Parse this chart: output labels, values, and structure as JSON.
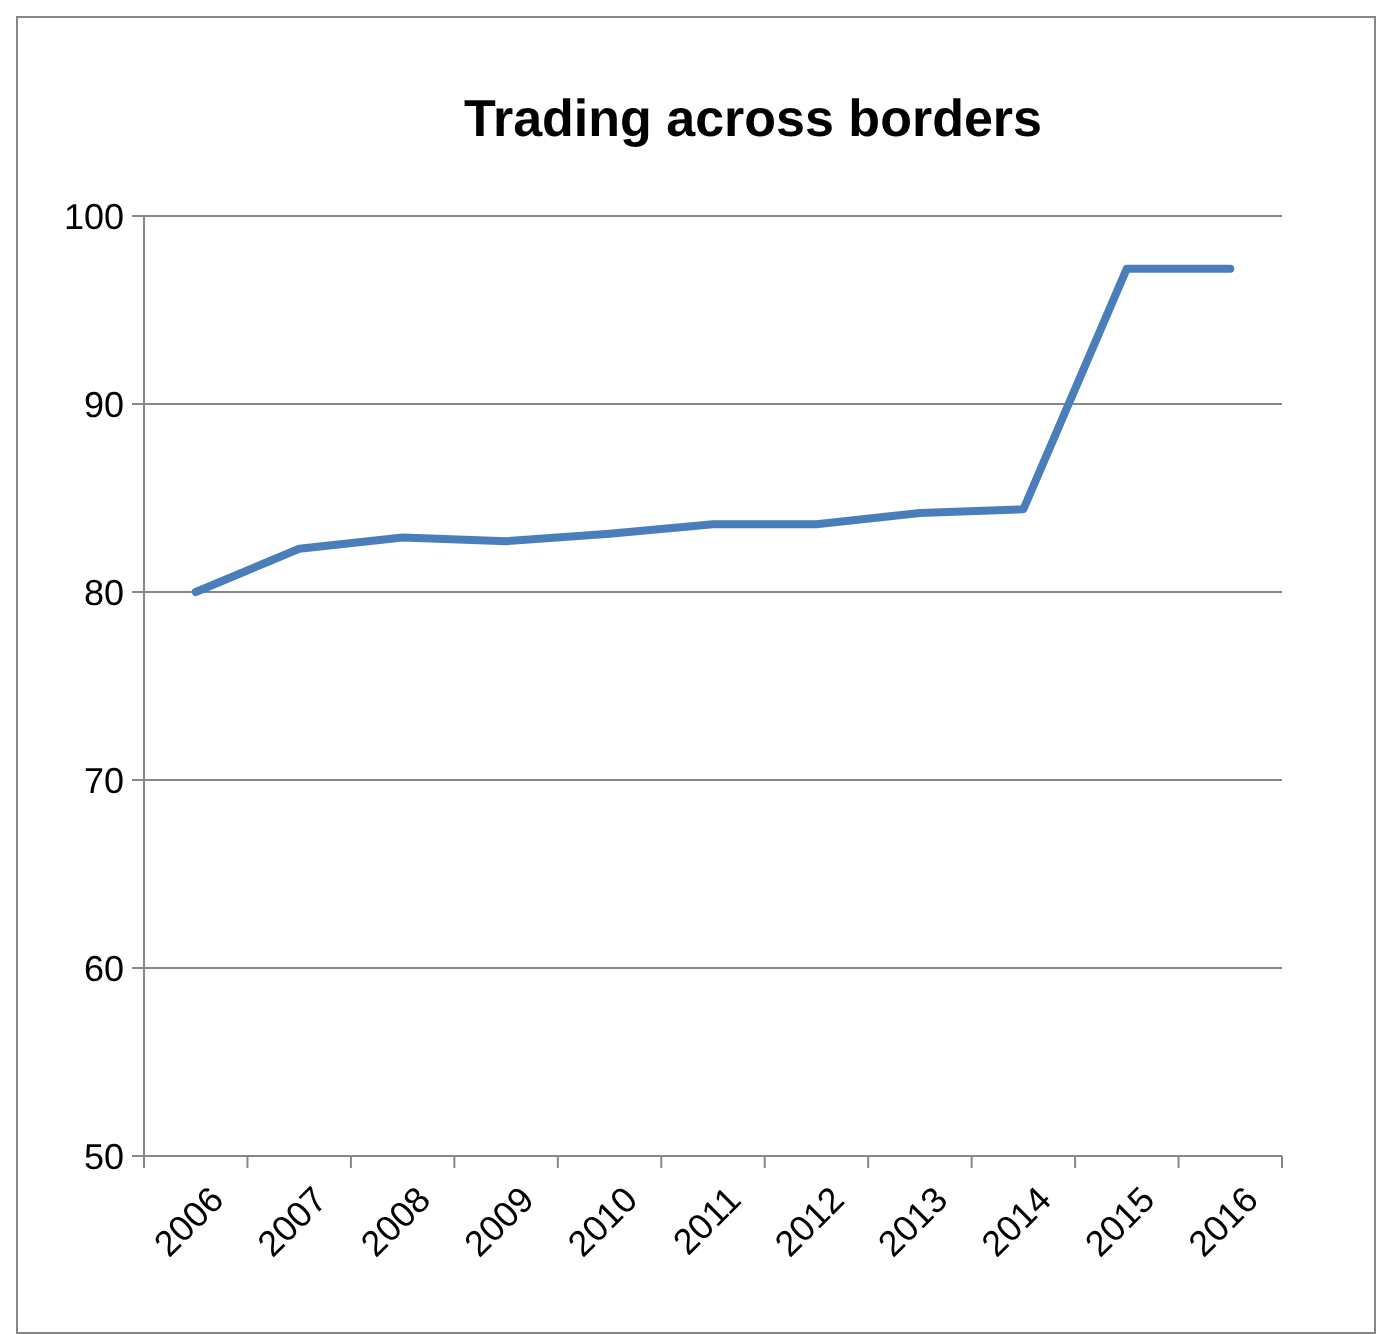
{
  "chart_data": {
    "type": "line",
    "title": "Trading across borders",
    "categories": [
      "2006",
      "2007",
      "2008",
      "2009",
      "2010",
      "2011",
      "2012",
      "2013",
      "2014",
      "2015",
      "2016"
    ],
    "series": [
      {
        "color": "#4a7ebb",
        "values": [
          80,
          82.3,
          82.9,
          82.7,
          83.1,
          83.6,
          83.6,
          84.2,
          84.4,
          97.2,
          97.2
        ]
      }
    ],
    "ylim": [
      50,
      100
    ],
    "yticks": [
      50,
      60,
      70,
      80,
      90,
      100
    ],
    "grid": "y",
    "marker": "none",
    "line_style": "solid"
  }
}
